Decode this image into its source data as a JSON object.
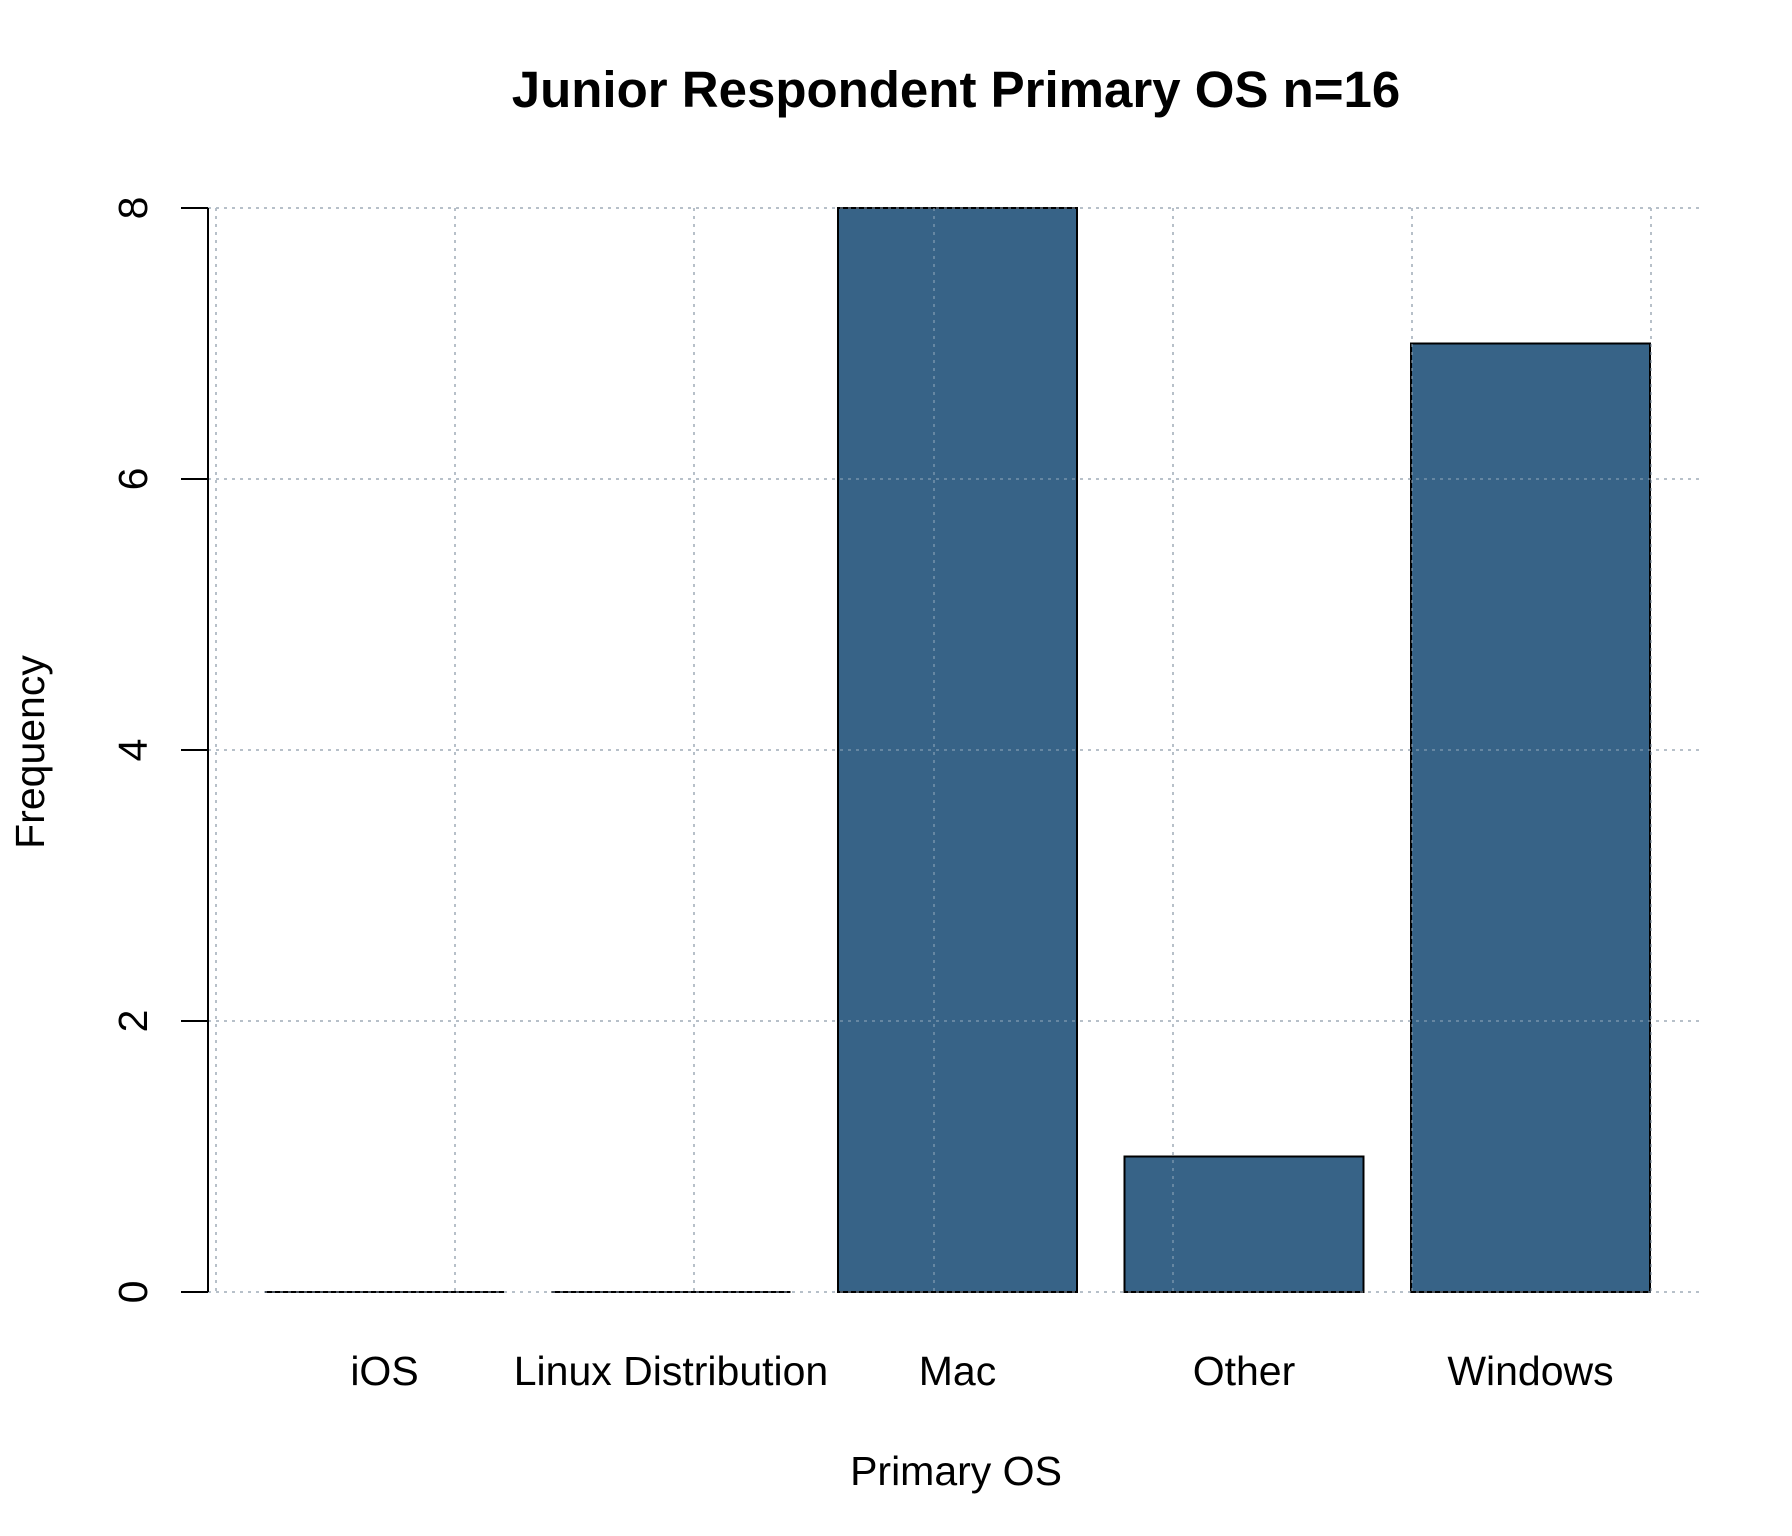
{
  "chart_data": {
    "type": "bar",
    "title": "Junior Respondent Primary OS n=16",
    "xlabel": "Primary OS",
    "ylabel": "Frequency",
    "categories": [
      "iOS",
      "Linux Distribution",
      "Mac",
      "Other",
      "Windows"
    ],
    "values": [
      0,
      0,
      8,
      1,
      7
    ],
    "ylim": [
      0,
      8
    ],
    "yticks": [
      "0",
      "2",
      "4",
      "6",
      "8"
    ],
    "grid": "dotted",
    "bar_color": "#376387",
    "grid_color": "#cccccc"
  }
}
